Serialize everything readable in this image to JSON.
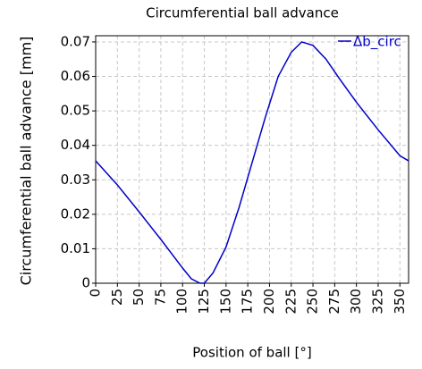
{
  "chart_data": {
    "type": "line",
    "title": "Circumferential ball advance",
    "x_label": "Position of ball [°]",
    "y_label": "Circumferential ball advance [mm]",
    "x": [
      0,
      25,
      50,
      75,
      100,
      110,
      120,
      125,
      135,
      150,
      165,
      180,
      195,
      210,
      225,
      237,
      250,
      265,
      280,
      300,
      325,
      350,
      360
    ],
    "series": [
      {
        "name": "Δb_circ",
        "color": "#0000c8",
        "values": [
          0.0355,
          0.0285,
          0.0207,
          0.0127,
          0.0044,
          0.0013,
          0.0,
          0.0,
          0.003,
          0.0105,
          0.022,
          0.035,
          0.048,
          0.06,
          0.067,
          0.07,
          0.069,
          0.065,
          0.0595,
          0.0525,
          0.0445,
          0.037,
          0.0355
        ]
      }
    ],
    "xlim": [
      0,
      360
    ],
    "xticks": [
      0,
      25,
      50,
      75,
      100,
      125,
      150,
      175,
      200,
      225,
      250,
      275,
      300,
      325,
      350
    ],
    "ylim": [
      0,
      0.0718
    ],
    "yticks": [
      0,
      0.01,
      0.02,
      0.03,
      0.04,
      0.05,
      0.06,
      0.07
    ],
    "grid": true,
    "legend": "upper-right"
  }
}
